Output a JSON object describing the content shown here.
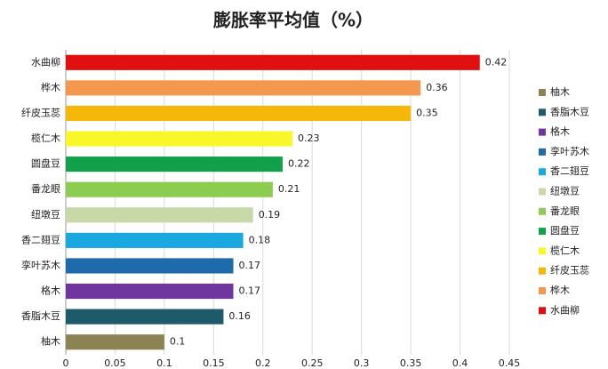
{
  "chart_data": {
    "type": "barh",
    "title": "膨胀率平均值（%）",
    "categories": [
      "柚木",
      "香脂木豆",
      "格木",
      "孪叶苏木",
      "香二翅豆",
      "纽墩豆",
      "番龙眼",
      "圆盘豆",
      "榄仁木",
      "纤皮玉蕊",
      "桦木",
      "水曲柳"
    ],
    "values": [
      0.1,
      0.16,
      0.17,
      0.17,
      0.18,
      0.19,
      0.21,
      0.22,
      0.23,
      0.35,
      0.36,
      0.42
    ],
    "colors": [
      "#8c8354",
      "#1f5a6a",
      "#6f36a0",
      "#1f6aab",
      "#1ba7e0",
      "#c8d9a8",
      "#8ccc50",
      "#12a04a",
      "#f7f72a",
      "#f5b70a",
      "#f5984f",
      "#e01010"
    ],
    "xlim": [
      0,
      0.45
    ],
    "xticks": [
      0,
      0.05,
      0.1,
      0.15,
      0.2,
      0.25,
      0.3,
      0.35,
      0.4,
      0.45
    ],
    "grid": true,
    "legend": "right"
  }
}
